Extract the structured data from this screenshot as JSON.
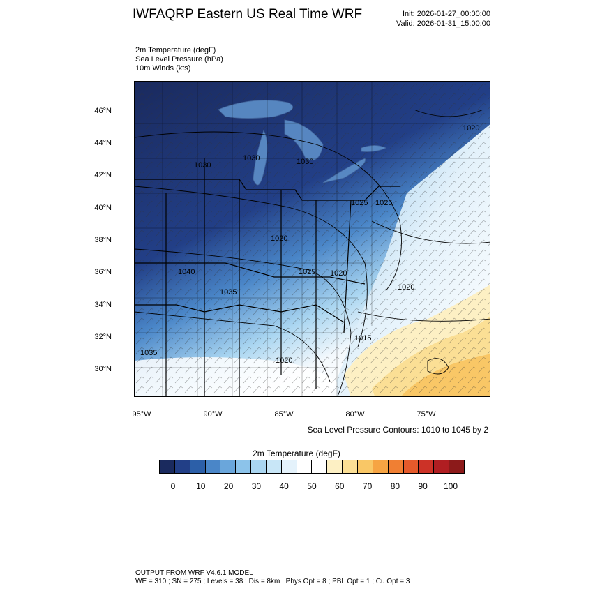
{
  "header": {
    "title": "IWFAQRP Eastern US Real Time WRF",
    "init": "Init: 2026-01-27_00:00:00",
    "valid": "Valid: 2026-01-31_15:00:00"
  },
  "variables": [
    "2m Temperature   (degF)",
    "Sea Level Pressure   (hPa)",
    "10m Winds   (kts)"
  ],
  "map": {
    "lat_labels": [
      "46°N",
      "44°N",
      "42°N",
      "40°N",
      "38°N",
      "36°N",
      "34°N",
      "32°N",
      "30°N"
    ],
    "lon_labels": [
      "95°W",
      "90°W",
      "85°W",
      "80°W",
      "75°W"
    ],
    "pressure_labels": [
      "1020",
      "1030",
      "1030",
      "1030",
      "1025",
      "1025",
      "1020",
      "1025",
      "1020",
      "1040",
      "1035",
      "1020",
      "1035",
      "1015",
      "1020"
    ],
    "contour_note": "Sea Level Pressure Contours: 1010 to 1045 by 2"
  },
  "colorbar": {
    "title": "2m Temperature  (degF)",
    "colors": [
      "#1a2a5e",
      "#223f87",
      "#2c5fa8",
      "#4a86c8",
      "#6aa6db",
      "#8cc3ea",
      "#aad6f1",
      "#c8e6f7",
      "#e4f2fb",
      "#ffffff",
      "#ffffff",
      "#fdf0c4",
      "#fbdf95",
      "#f9c766",
      "#f6a443",
      "#f07f33",
      "#e55a2b",
      "#cc3227",
      "#b01e22",
      "#8c1a1a"
    ],
    "ticks": [
      "0",
      "10",
      "20",
      "30",
      "40",
      "50",
      "60",
      "70",
      "80",
      "90",
      "100"
    ]
  },
  "footer": {
    "line1": "OUTPUT FROM WRF V4.6.1 MODEL",
    "line2": "WE = 310 ; SN = 275 ; Levels = 38 ; Dis = 8km ; Phys Opt = 8 ; PBL Opt = 1 ; Cu Opt = 3"
  }
}
